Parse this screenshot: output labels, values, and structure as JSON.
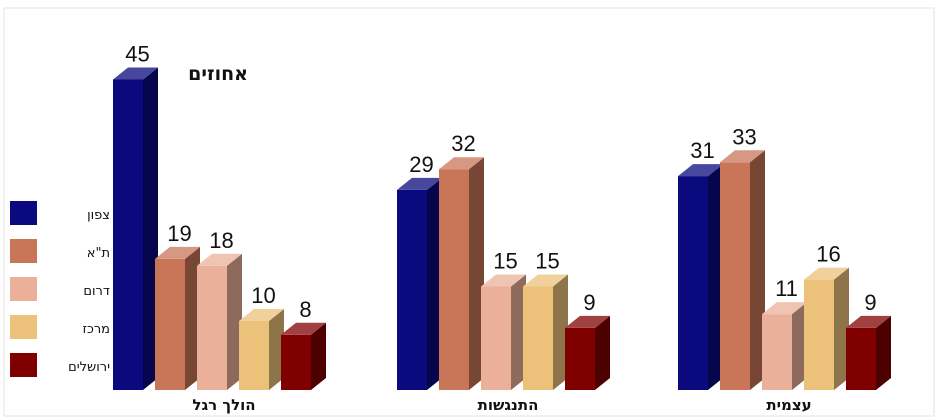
{
  "chart_data": {
    "type": "bar",
    "ylabel": "אחוזים",
    "categories": [
      "הולך רגל",
      "התנגשות",
      "עצמית"
    ],
    "series": [
      {
        "name": "צפון",
        "color": "#0a0a7e",
        "values": [
          45,
          29,
          31
        ]
      },
      {
        "name": "ת\"א",
        "color": "#c87558",
        "values": [
          19,
          32,
          33
        ]
      },
      {
        "name": "דרום",
        "color": "#ebb09a",
        "values": [
          18,
          15,
          11
        ]
      },
      {
        "name": "מרכז",
        "color": "#ecc27a",
        "values": [
          10,
          15,
          16
        ]
      },
      {
        "name": "ירושלים",
        "color": "#800000",
        "values": [
          8,
          9,
          9
        ]
      }
    ],
    "ylim": [
      0,
      45
    ],
    "grid": false,
    "legend_position": "left",
    "data_labels": true,
    "style": "3d"
  }
}
